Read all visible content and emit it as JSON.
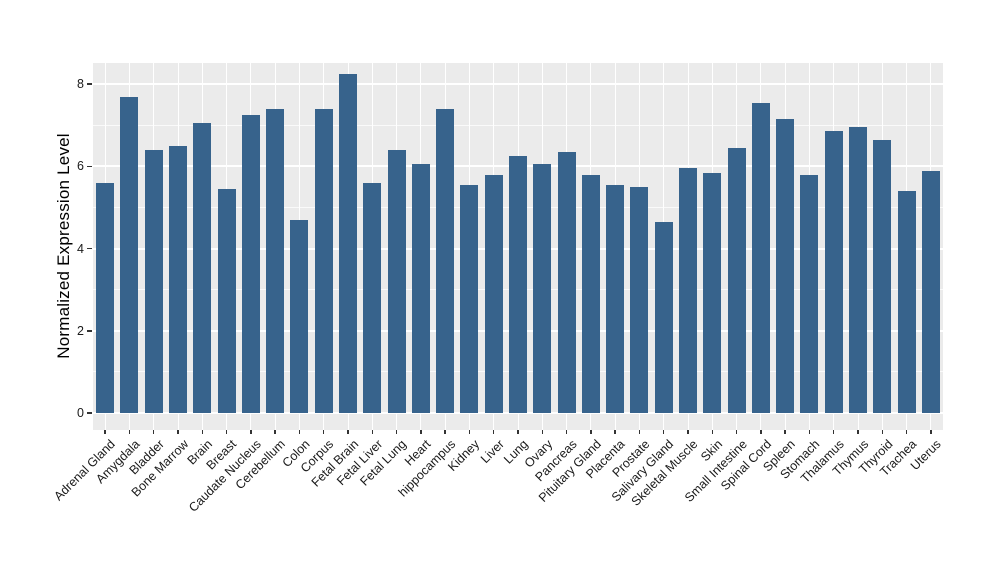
{
  "chart_data": {
    "type": "bar",
    "title": "",
    "xlabel": "",
    "ylabel": "Normalized Expression Level",
    "legend": "none",
    "grid": {
      "horizontal_major": true,
      "horizontal_minor": true,
      "vertical_at_categories": true
    },
    "ylim": [
      0,
      8.5
    ],
    "y_ticks": [
      0,
      2,
      4,
      6,
      8
    ],
    "y_minor_ticks": [
      1,
      3,
      5,
      7
    ],
    "categories": [
      "Adrenal Gland",
      "Amygdala",
      "Bladder",
      "Bone Marrow",
      "Brain",
      "Breast",
      "Caudate Nucleus",
      "Cerebellum",
      "Colon",
      "Corpus",
      "Fetal Brain",
      "Fetal Liver",
      "Fetal Lung",
      "Heart",
      "hippocampus",
      "Kidney",
      "Liver",
      "Lung",
      "Ovary",
      "Pancreas",
      "Pituitary Gland",
      "Placenta",
      "Prostate",
      "Salivary Gland",
      "Skeletal Muscle",
      "Skin",
      "Small Intestine",
      "Spinal Cord",
      "Spleen",
      "Stomach",
      "Thalamus",
      "Thymus",
      "Thyroid",
      "Trachea",
      "Uterus"
    ],
    "values": [
      5.6,
      7.7,
      6.4,
      6.5,
      7.05,
      5.45,
      7.25,
      7.4,
      4.7,
      7.4,
      8.25,
      5.6,
      6.4,
      6.05,
      7.4,
      5.55,
      5.8,
      6.25,
      6.05,
      6.35,
      5.8,
      5.55,
      5.5,
      4.65,
      5.95,
      5.85,
      6.45,
      7.55,
      7.15,
      5.8,
      6.85,
      6.95,
      6.65,
      5.4,
      5.9
    ],
    "colors": {
      "bar_fill": "#37638C",
      "panel_background": "#EBEBEB",
      "gridline_major": "#FFFFFF",
      "gridline_minor": "#FFFFFF",
      "axis_text": "#1A1A1A",
      "axis_title": "#000000",
      "tick_mark": "#333333",
      "figure_background": "#FFFFFF"
    }
  }
}
